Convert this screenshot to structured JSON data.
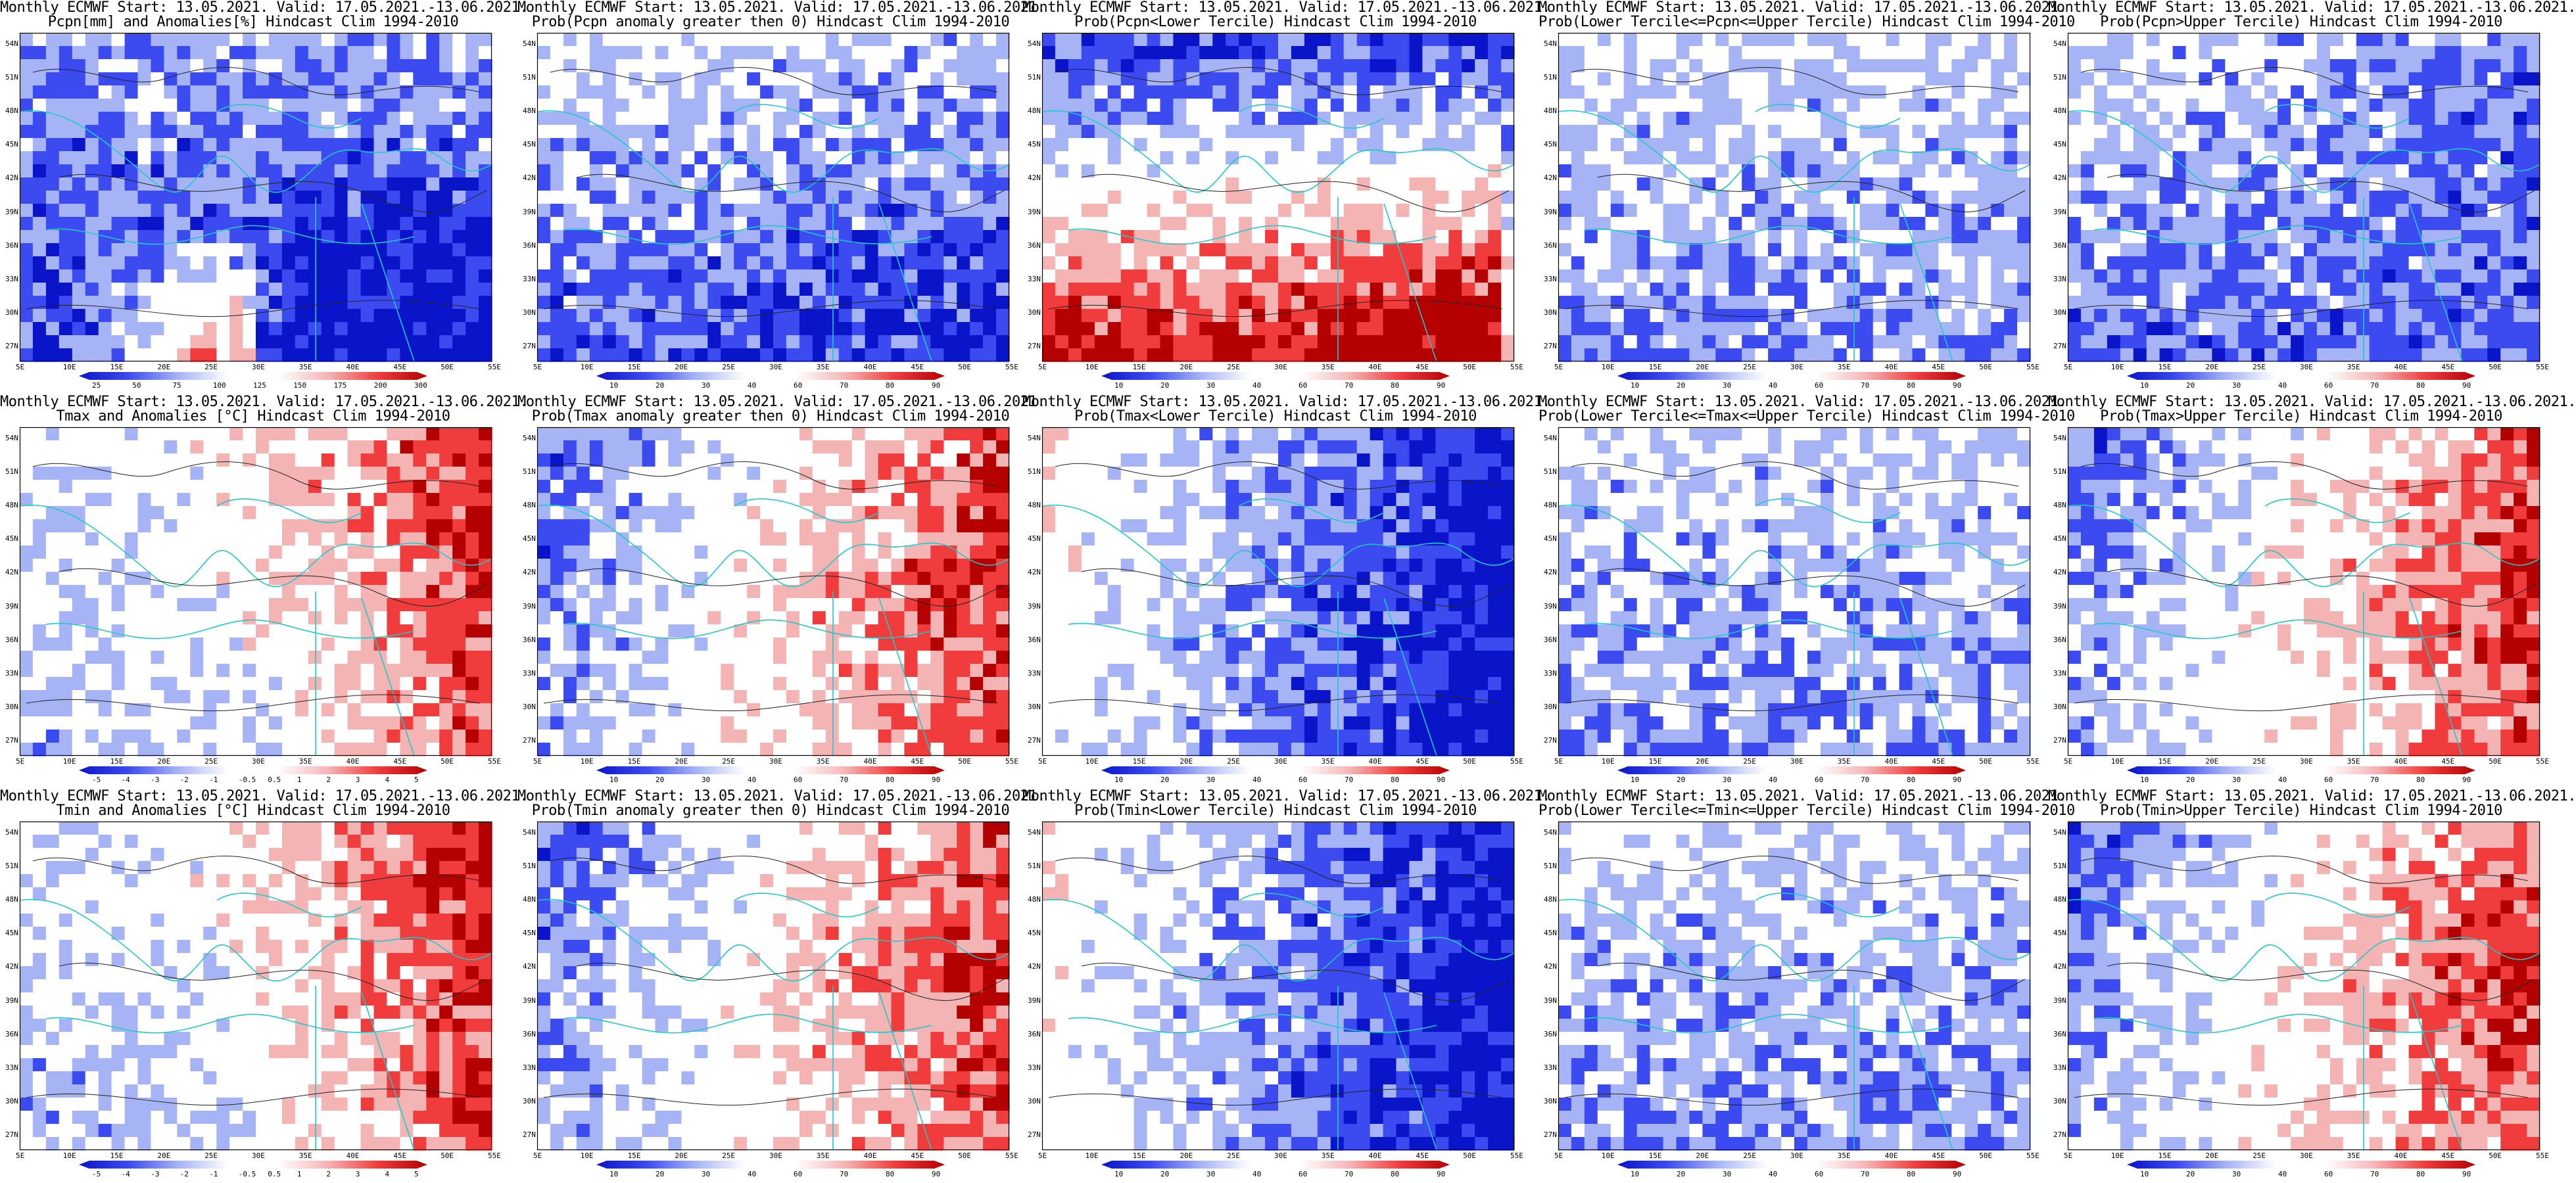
{
  "header_line": "Monthly ECMWF Start: 13.05.2021. Valid: 17.05.2021.-13.06.2021.",
  "panels": [
    {
      "title2": "Pcpn[mm] and Anomalies[%] Hindcast Clim 1994-2010",
      "scheme": "pcpn_anom",
      "colorbar": [
        "25",
        "50",
        "75",
        "100",
        "125",
        "150",
        "175",
        "200",
        "300"
      ]
    },
    {
      "title2": "Prob(Pcpn anomaly greater then 0) Hindcast Clim 1994-2010",
      "scheme": "prob_pcpn",
      "colorbar": [
        "10",
        "20",
        "30",
        "40",
        "60",
        "70",
        "80",
        "90"
      ]
    },
    {
      "title2": "Prob(Pcpn<Lower Tercile) Hindcast Clim 1994-2010",
      "scheme": "dry",
      "colorbar": [
        "10",
        "20",
        "30",
        "40",
        "60",
        "70",
        "80",
        "90"
      ]
    },
    {
      "title2": "Prob(Lower Tercile<=Pcpn<=Upper Tercile) Hindcast Clim 1994-2010",
      "scheme": "normal",
      "colorbar": [
        "10",
        "20",
        "30",
        "40",
        "60",
        "70",
        "80",
        "90"
      ]
    },
    {
      "title2": "Prob(Pcpn>Upper Tercile) Hindcast Clim 1994-2010",
      "scheme": "wet",
      "colorbar": [
        "10",
        "20",
        "30",
        "40",
        "60",
        "70",
        "80",
        "90"
      ]
    },
    {
      "title2": "Tmax and Anomalies [°C] Hindcast Clim 1994-2010",
      "scheme": "warm_east",
      "colorbar": [
        "-5",
        "-4",
        "-3",
        "-2",
        "-1",
        "-0.5",
        "0.5",
        "1",
        "2",
        "3",
        "4",
        "5"
      ]
    },
    {
      "title2": "Prob(Tmax anomaly greater then 0) Hindcast Clim 1994-2010",
      "scheme": "warm_prob",
      "colorbar": [
        "10",
        "20",
        "30",
        "40",
        "60",
        "70",
        "80",
        "90"
      ]
    },
    {
      "title2": "Prob(Tmax<Lower Tercile) Hindcast Clim 1994-2010",
      "scheme": "cold_prob",
      "colorbar": [
        "10",
        "20",
        "30",
        "40",
        "60",
        "70",
        "80",
        "90"
      ]
    },
    {
      "title2": "Prob(Lower Tercile<=Tmax<=Upper Tercile) Hindcast Clim 1994-2010",
      "scheme": "normal",
      "colorbar": [
        "10",
        "20",
        "30",
        "40",
        "60",
        "70",
        "80",
        "90"
      ]
    },
    {
      "title2": "Prob(Tmax>Upper Tercile) Hindcast Clim 1994-2010",
      "scheme": "warm_prob",
      "colorbar": [
        "10",
        "20",
        "30",
        "40",
        "60",
        "70",
        "80",
        "90"
      ]
    },
    {
      "title2": "Tmin and Anomalies [°C] Hindcast Clim 1994-2010",
      "scheme": "warm_east",
      "colorbar": [
        "-5",
        "-4",
        "-3",
        "-2",
        "-1",
        "-0.5",
        "0.5",
        "1",
        "2",
        "3",
        "4",
        "5"
      ]
    },
    {
      "title2": "Prob(Tmin anomaly greater then 0) Hindcast Clim 1994-2010",
      "scheme": "warm_prob",
      "colorbar": [
        "10",
        "20",
        "30",
        "40",
        "60",
        "70",
        "80",
        "90"
      ]
    },
    {
      "title2": "Prob(Tmin<Lower Tercile) Hindcast Clim 1994-2010",
      "scheme": "cold_prob",
      "colorbar": [
        "10",
        "20",
        "30",
        "40",
        "60",
        "70",
        "80",
        "90"
      ]
    },
    {
      "title2": "Prob(Lower Tercile<=Tmin<=Upper Tercile) Hindcast Clim 1994-2010",
      "scheme": "normal",
      "colorbar": [
        "10",
        "20",
        "30",
        "40",
        "60",
        "70",
        "80",
        "90"
      ]
    },
    {
      "title2": "Prob(Tmin>Upper Tercile) Hindcast Clim 1994-2010",
      "scheme": "warm_prob",
      "colorbar": [
        "10",
        "20",
        "30",
        "40",
        "60",
        "70",
        "80",
        "90"
      ]
    }
  ],
  "lat_labels": [
    "54N",
    "51N",
    "48N",
    "45N",
    "42N",
    "39N",
    "36N",
    "33N",
    "30N",
    "27N"
  ],
  "lon_labels": [
    "5E",
    "10E",
    "15E",
    "20E",
    "25E",
    "30E",
    "35E",
    "40E",
    "45E",
    "50E",
    "55E"
  ],
  "colors": {
    "deep_blue": "#0a14c8",
    "mid_blue": "#3c4bf0",
    "light_blue": "#a6b4f5",
    "white": "#ffffff",
    "light_red": "#f5b4b4",
    "mid_red": "#f03c3c",
    "deep_red": "#b40000",
    "coast": "#20c8c8"
  }
}
